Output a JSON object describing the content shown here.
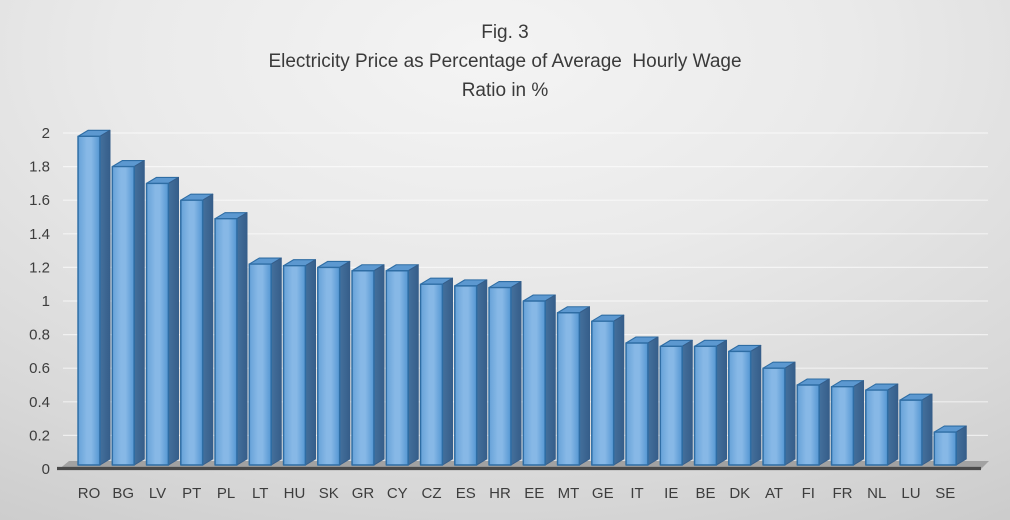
{
  "chart_data": {
    "type": "bar",
    "style": "3d-column",
    "title_lines": [
      "Fig. 3",
      "Electricity Price as Percentage of Average  Hourly Wage",
      "Ratio in %"
    ],
    "categories": [
      "RO",
      "BG",
      "LV",
      "PT",
      "PL",
      "LT",
      "HU",
      "SK",
      "GR",
      "CY",
      "CZ",
      "ES",
      "HR",
      "EE",
      "MT",
      "GE",
      "IT",
      "IE",
      "BE",
      "DK",
      "AT",
      "FI",
      "FR",
      "NL",
      "LU",
      "SE"
    ],
    "values": [
      1.98,
      1.8,
      1.7,
      1.6,
      1.49,
      1.22,
      1.21,
      1.2,
      1.18,
      1.18,
      1.1,
      1.09,
      1.08,
      1.0,
      0.93,
      0.88,
      0.75,
      0.73,
      0.73,
      0.7,
      0.6,
      0.5,
      0.49,
      0.47,
      0.41,
      0.22
    ],
    "xlabel": "",
    "ylabel": "",
    "ylim": [
      0,
      2
    ],
    "ytick_step": 0.2,
    "ytick_labels": [
      "0",
      "0.2",
      "0.4",
      "0.6",
      "0.8",
      "1",
      "1.2",
      "1.4",
      "1.6",
      "1.8",
      "2"
    ],
    "grid": true,
    "legend": "none",
    "colors": {
      "bar_fill": "#5b9bd5",
      "bar_highlight": "#87b8e6",
      "bar_shade_left": "#4183c0",
      "bar_shade_right": "#306da9",
      "bar_edge": "#2e6da4",
      "bar_side_light": "#44709c",
      "bar_side_dark": "#365e8a",
      "bar_top": "#5c98d0",
      "axis_line": "#4a4a4a",
      "floor": "#a2a2a2",
      "gridline": "rgba(255,255,255,0.6)",
      "text": "#3d3d3d"
    }
  }
}
